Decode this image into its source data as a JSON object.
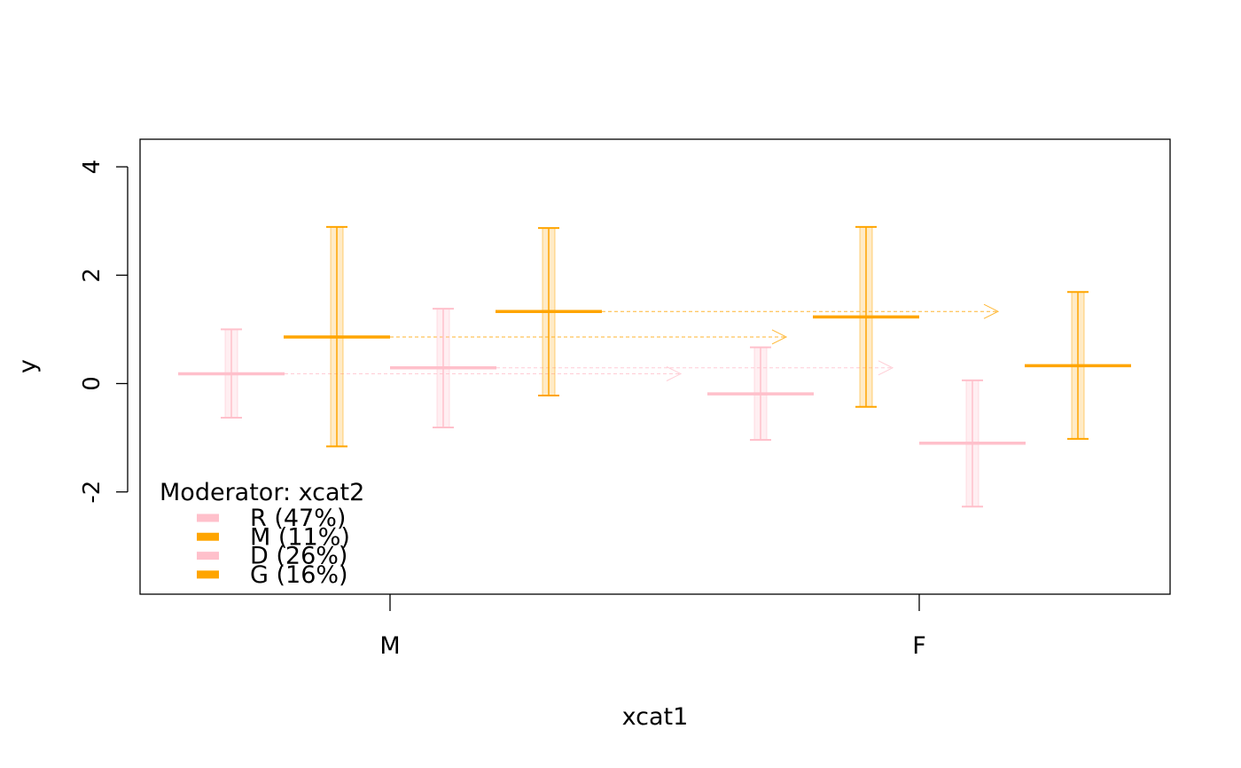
{
  "chart_data": {
    "type": "interval",
    "title": "",
    "xlabel": "xcat1",
    "ylabel": "y",
    "ylim": [
      -3.9,
      4.5
    ],
    "yticks": [
      -2,
      0,
      2,
      4
    ],
    "ytick_labels": [
      "-2",
      "0",
      "2",
      "4"
    ],
    "categories": [
      "M",
      "F"
    ],
    "grid": false,
    "legend": {
      "title": "Moderator: xcat2",
      "placement": "bottom-left",
      "entries": [
        {
          "label": "R (47%)",
          "color": "#FFC0CB"
        },
        {
          "label": "M (11%)",
          "color": "#FFA500"
        },
        {
          "label": "D (26%)",
          "color": "#FFC0CB"
        },
        {
          "label": "G (16%)",
          "color": "#FFA500"
        }
      ]
    },
    "series": [
      {
        "name": "R",
        "color": "#FFC0CB",
        "values": [
          {
            "category": "M",
            "mean": 0.18,
            "lower": -0.63,
            "upper": 1.0
          },
          {
            "category": "F",
            "mean": -0.19,
            "lower": -1.04,
            "upper": 0.67
          }
        ]
      },
      {
        "name": "M",
        "color": "#FFA500",
        "values": [
          {
            "category": "M",
            "mean": 0.86,
            "lower": -1.16,
            "upper": 2.89
          },
          {
            "category": "F",
            "mean": 1.23,
            "lower": -0.43,
            "upper": 2.89
          }
        ]
      },
      {
        "name": "D",
        "color": "#FFC0CB",
        "values": [
          {
            "category": "M",
            "mean": 0.29,
            "lower": -0.81,
            "upper": 1.38
          },
          {
            "category": "F",
            "mean": -1.1,
            "lower": -2.27,
            "upper": 0.06
          }
        ]
      },
      {
        "name": "G",
        "color": "#FFA500",
        "values": [
          {
            "category": "M",
            "mean": 1.33,
            "lower": -0.22,
            "upper": 2.87
          },
          {
            "category": "F",
            "mean": 0.33,
            "lower": -1.02,
            "upper": 1.69
          }
        ]
      }
    ]
  }
}
